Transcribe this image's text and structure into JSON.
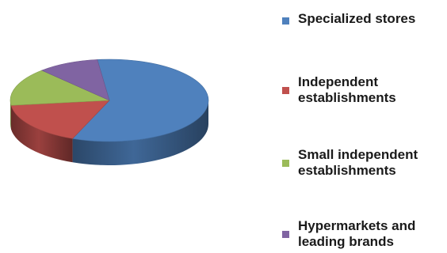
{
  "chart_data": {
    "type": "pie",
    "style": "3d",
    "title": "",
    "legend_position": "right",
    "slices": [
      {
        "label": "Specialized stores",
        "value": 58,
        "color": "#4f81bd"
      },
      {
        "label": "Independent\nestablishments",
        "value": 17,
        "color": "#c0504d"
      },
      {
        "label": "Small independent\nestablishments",
        "value": 15,
        "color": "#9bbb59"
      },
      {
        "label": "Hypermarkets and\nleading brands",
        "value": 10,
        "color": "#8064a2"
      }
    ]
  }
}
